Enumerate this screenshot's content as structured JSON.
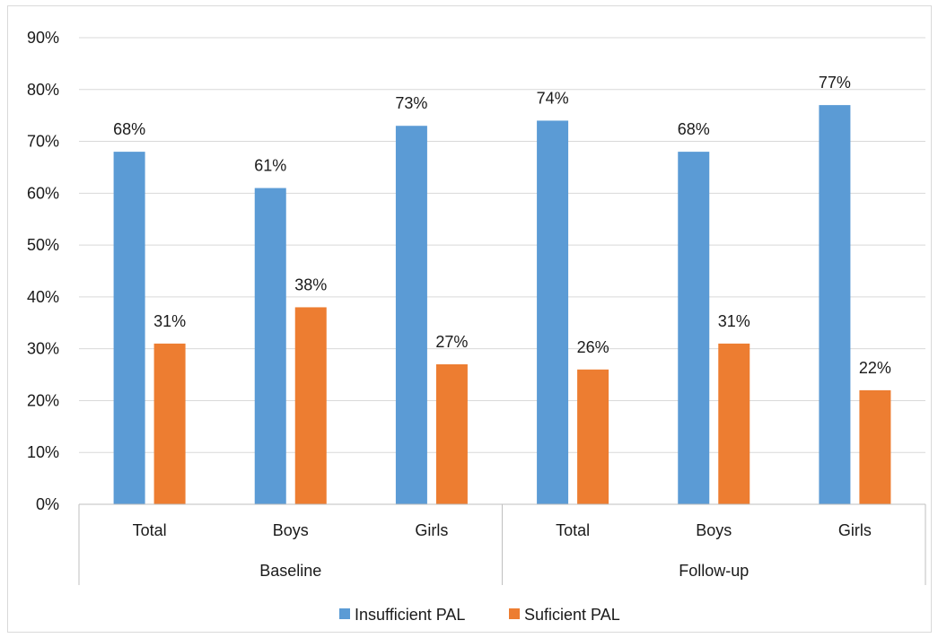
{
  "chart_data": {
    "type": "bar",
    "groups": [
      {
        "label": "Baseline",
        "categories": [
          "Total",
          "Boys",
          "Girls"
        ]
      },
      {
        "label": "Follow-up",
        "categories": [
          "Total",
          "Boys",
          "Girls"
        ]
      }
    ],
    "categories": [
      "Total",
      "Boys",
      "Girls",
      "Total",
      "Boys",
      "Girls"
    ],
    "series": [
      {
        "name": "Insufficient PAL",
        "color": "#5b9bd5",
        "values": [
          68,
          61,
          73,
          74,
          68,
          77
        ]
      },
      {
        "name": "Suficient PAL",
        "color": "#ed7d31",
        "values": [
          31,
          38,
          27,
          26,
          31,
          22
        ]
      }
    ],
    "ylim": [
      0,
      90
    ],
    "yticks": [
      "0%",
      "10%",
      "20%",
      "30%",
      "40%",
      "50%",
      "60%",
      "70%",
      "80%",
      "90%"
    ],
    "value_suffix": "%",
    "grid": true,
    "legend_position": "bottom"
  }
}
